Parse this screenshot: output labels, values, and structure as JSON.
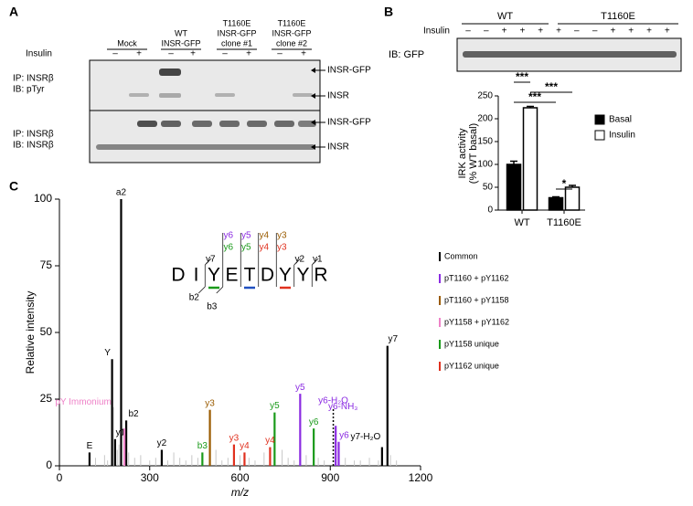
{
  "panel_a": {
    "label": "A",
    "groups": [
      [
        "Mock"
      ],
      [
        "WT",
        "INSR-GFP"
      ],
      [
        "T1160E",
        "INSR-GFP",
        "clone #1"
      ],
      [
        "T1160E",
        "INSR-GFP",
        "clone #2"
      ]
    ],
    "insulin_label": "Insulin",
    "signs": [
      "–",
      "+",
      "–",
      "+",
      "–",
      "+",
      "–",
      "+"
    ],
    "left_labels": [
      [
        "IP: INSRβ",
        "IB: pTyr"
      ],
      [
        "IP: INSRβ",
        "IB: INSRβ"
      ]
    ],
    "right_labels": [
      "INSR-GFP",
      "INSR",
      "INSR-GFP",
      "INSR"
    ]
  },
  "panel_b": {
    "label": "B",
    "groups": [
      "WT",
      "T1160E"
    ],
    "insulin_label": "Insulin",
    "signs": [
      "–",
      "–",
      "+",
      "+",
      "+",
      "+",
      "–",
      "–",
      "+",
      "+",
      "+",
      "+"
    ],
    "blot_label": "IB: GFP"
  },
  "chart_data": [
    {
      "type": "bar",
      "categories": [
        "WT",
        "T1160E"
      ],
      "ylabel": [
        "IRK activity",
        "(% WT basal)"
      ],
      "series": [
        {
          "name": "Basal",
          "color": "#000000",
          "values": [
            100,
            27
          ],
          "errors": [
            7,
            2
          ]
        },
        {
          "name": "Insulin",
          "color": "#ffffff",
          "values": [
            224,
            50
          ],
          "errors": [
            3,
            4
          ]
        }
      ],
      "ylim": [
        0,
        250
      ],
      "yticks": [
        0,
        50,
        100,
        150,
        200,
        250
      ],
      "significance": [
        "***",
        "***",
        "***",
        "*"
      ]
    },
    {
      "type": "stem",
      "panel_label": "C",
      "xlabel": "m/z",
      "ylabel": "Relative intensity",
      "xlim": [
        0,
        1200
      ],
      "xticks": [
        0,
        300,
        600,
        900,
        1200
      ],
      "ylim": [
        0,
        100
      ],
      "yticks": [
        0,
        25,
        50,
        75,
        100
      ],
      "series": [
        {
          "color": "#c8c8c8",
          "x": [
            120,
            150,
            160,
            180,
            192,
            198,
            230,
            250,
            270,
            300,
            320,
            360,
            380,
            400,
            420,
            440,
            460,
            520,
            540,
            560,
            600,
            630,
            650,
            680,
            740,
            760,
            780,
            820,
            860,
            880,
            950,
            980,
            1000,
            1030,
            1060,
            1100,
            1120
          ],
          "values": [
            3,
            4,
            2,
            22,
            6,
            8,
            5,
            3,
            4,
            2,
            3,
            2,
            5,
            3,
            2,
            4,
            3,
            6,
            2,
            3,
            4,
            3,
            2,
            5,
            6,
            3,
            2,
            4,
            3,
            2,
            3,
            2,
            2,
            3,
            2,
            4,
            2
          ]
        },
        {
          "name": "Common",
          "color": "#000000",
          "x": [
            100,
            175,
            185,
            205,
            222,
            340,
            1072,
            1090
          ],
          "values": [
            5,
            40,
            10,
            100,
            17,
            6,
            7,
            45
          ],
          "labels": [
            "E",
            "Y",
            "y1",
            "a2",
            "b2",
            "y2",
            "y7-H₂O",
            "y7"
          ]
        },
        {
          "name": "pT1160 + pY1162",
          "color": "#8b2be2",
          "x": [
            800,
            918,
            928
          ],
          "values": [
            27,
            15,
            9
          ],
          "labels": [
            "y5",
            "y6-NH₃",
            "y6"
          ]
        },
        {
          "name": "pT1160 + pY1158",
          "color": "#9a5b00",
          "x": [
            500
          ],
          "values": [
            21
          ],
          "labels": [
            "y3"
          ]
        },
        {
          "name": "pY1158 + pY1162",
          "color": "#ee82c8",
          "x": [
            216
          ],
          "values": [
            14
          ],
          "labels": [
            "pY Immonium"
          ]
        },
        {
          "name": "pY1158 unique",
          "color": "#1a9a1a",
          "x": [
            475,
            715,
            845
          ],
          "values": [
            5,
            20,
            14
          ],
          "labels": [
            "b3",
            "y5",
            "y6"
          ]
        },
        {
          "name": "pY1162 unique",
          "color": "#e0301e",
          "x": [
            580,
            615,
            700
          ],
          "values": [
            8,
            5,
            7
          ],
          "labels": [
            "y3",
            "y4",
            "y4"
          ]
        }
      ],
      "dotted_peak": {
        "x": 910,
        "value": 22,
        "label": "y6-H₂O",
        "color": "#8b2be2"
      },
      "peptide": {
        "sequence": [
          "D",
          "I",
          "Y",
          "E",
          "T",
          "D",
          "Y",
          "Y",
          "R"
        ],
        "y_ions": [
          {
            "color": "#8b2be2",
            "labels": [
              "y6",
              "y5"
            ]
          },
          {
            "color": "#9a5b00",
            "labels": [
              "y4",
              "y3"
            ]
          },
          {
            "color": "#1a9a1a",
            "labels": [
              "y6",
              "y5"
            ]
          },
          {
            "color": "#e0301e",
            "labels": [
              "y4",
              "y3"
            ]
          },
          {
            "color": "#000000",
            "labels": [
              "y7",
              "y2",
              "y1"
            ]
          }
        ],
        "b_ions": [
          "b2",
          "b3"
        ]
      }
    }
  ]
}
